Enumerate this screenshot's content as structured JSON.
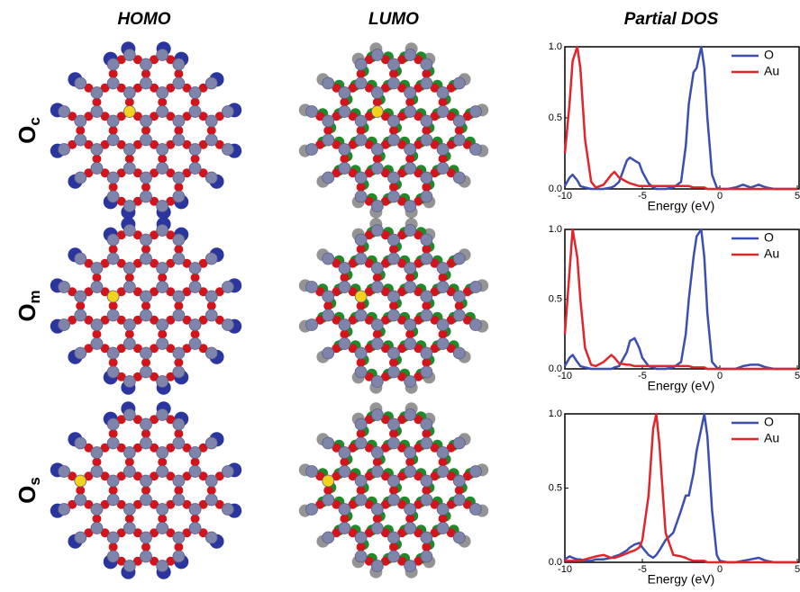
{
  "columns": [
    "HOMO",
    "LUMO",
    "Partial DOS"
  ],
  "rows": [
    {
      "label": "O",
      "subscript": "c"
    },
    {
      "label": "O",
      "subscript": "m"
    },
    {
      "label": "O",
      "subscript": "s"
    }
  ],
  "chart_data": [
    {
      "type": "line",
      "xlabel": "Energy (eV)",
      "xlim": [
        -10,
        5
      ],
      "xticks": [
        -10,
        -5,
        0,
        5
      ],
      "ylim": [
        0,
        1
      ],
      "yticks": [
        {
          "value": 0,
          "label": "0.0"
        },
        {
          "value": 0.5,
          "label": "0.5"
        },
        {
          "value": 1,
          "label": "1.0"
        }
      ],
      "legend": "top-right",
      "x": [
        -10,
        -9.7,
        -9.5,
        -9.2,
        -9,
        -8.7,
        -8.3,
        -8,
        -7.5,
        -7,
        -6.8,
        -6.5,
        -6,
        -5.8,
        -5.5,
        -5.2,
        -5,
        -4.6,
        -4.3,
        -4.1,
        -3.9,
        -3.5,
        -3,
        -2.5,
        -2.2,
        -2,
        -1.7,
        -1.5,
        -1.2,
        -1,
        -0.8,
        -0.5,
        -0.2,
        0,
        0.5,
        1,
        1.5,
        2,
        2.5,
        3,
        3.5,
        4,
        5
      ],
      "series": [
        {
          "name": "O",
          "color": "#3a4fb0",
          "values": [
            0.02,
            0.08,
            0.1,
            0.06,
            0.02,
            0.01,
            0,
            0,
            0,
            0.01,
            0.02,
            0.05,
            0.2,
            0.22,
            0.2,
            0.18,
            0.12,
            0.04,
            0.01,
            0,
            0,
            0,
            0.01,
            0.05,
            0.3,
            0.6,
            0.82,
            0.85,
            1.0,
            0.85,
            0.5,
            0.1,
            0.01,
            0,
            0,
            0.01,
            0.03,
            0.01,
            0.03,
            0.01,
            0,
            0,
            0
          ]
        },
        {
          "name": "Au",
          "color": "#e0262a",
          "values": [
            0.25,
            0.6,
            0.9,
            1.0,
            0.85,
            0.35,
            0.05,
            0.01,
            0.03,
            0.1,
            0.12,
            0.08,
            0.05,
            0.04,
            0.03,
            0.02,
            0.02,
            0.02,
            0.02,
            0.02,
            0.02,
            0.02,
            0.02,
            0.02,
            0.02,
            0.02,
            0.01,
            0.01,
            0.01,
            0.01,
            0,
            0,
            0,
            0,
            0,
            0,
            0,
            0,
            0,
            0,
            0,
            0,
            0
          ]
        }
      ]
    },
    {
      "type": "line",
      "xlabel": "Energy (eV)",
      "xlim": [
        -10,
        5
      ],
      "xticks": [
        -10,
        -5,
        0,
        5
      ],
      "ylim": [
        0,
        1
      ],
      "yticks": [
        {
          "value": 0,
          "label": "0.0"
        },
        {
          "value": 0.5,
          "label": "0.5"
        },
        {
          "value": 1,
          "label": "1.0"
        }
      ],
      "legend": "top-right",
      "x": [
        -10,
        -9.7,
        -9.5,
        -9.2,
        -9,
        -8.7,
        -8.3,
        -8,
        -7.5,
        -7,
        -6.8,
        -6.5,
        -6,
        -5.8,
        -5.5,
        -5.2,
        -5,
        -4.6,
        -4.3,
        -4.1,
        -3.9,
        -3.5,
        -3,
        -2.5,
        -2.2,
        -2,
        -1.7,
        -1.5,
        -1.2,
        -1,
        -0.8,
        -0.5,
        -0.2,
        0,
        0.5,
        1,
        1.5,
        2,
        2.5,
        3,
        3.5,
        4,
        5
      ],
      "series": [
        {
          "name": "O",
          "color": "#3a4fb0",
          "values": [
            0.02,
            0.08,
            0.1,
            0.05,
            0.02,
            0.01,
            0,
            0,
            0,
            0,
            0.01,
            0.02,
            0.12,
            0.2,
            0.22,
            0.15,
            0.08,
            0.02,
            0.01,
            0,
            0,
            0,
            0.01,
            0.05,
            0.25,
            0.5,
            0.8,
            0.95,
            1.0,
            0.8,
            0.4,
            0.05,
            0.01,
            0,
            0,
            0,
            0.02,
            0.03,
            0.03,
            0.01,
            0,
            0,
            0
          ]
        },
        {
          "name": "Au",
          "color": "#e0262a",
          "values": [
            0.25,
            0.7,
            1.0,
            0.8,
            0.5,
            0.15,
            0.03,
            0.02,
            0.05,
            0.1,
            0.08,
            0.04,
            0.03,
            0.03,
            0.02,
            0.02,
            0.02,
            0.02,
            0.02,
            0.02,
            0.02,
            0.02,
            0.02,
            0.02,
            0.02,
            0.02,
            0.01,
            0.01,
            0.01,
            0.01,
            0,
            0,
            0,
            0,
            0,
            0,
            0,
            0,
            0,
            0,
            0,
            0,
            0
          ]
        }
      ]
    },
    {
      "type": "line",
      "xlabel": "Energy (eV)",
      "xlim": [
        -10,
        5
      ],
      "xticks": [
        -10,
        -5,
        0,
        5
      ],
      "ylim": [
        0,
        1
      ],
      "yticks": [
        {
          "value": 0,
          "label": "0.0"
        },
        {
          "value": 0.5,
          "label": "0.5"
        },
        {
          "value": 1,
          "label": "1.0"
        }
      ],
      "legend": "top-right",
      "x": [
        -10,
        -9.7,
        -9.5,
        -9.2,
        -9,
        -8.7,
        -8.3,
        -8,
        -7.5,
        -7,
        -6.8,
        -6.5,
        -6,
        -5.8,
        -5.5,
        -5.2,
        -5,
        -4.6,
        -4.3,
        -4.1,
        -3.9,
        -3.5,
        -3,
        -2.5,
        -2.2,
        -2,
        -1.7,
        -1.5,
        -1.2,
        -1,
        -0.8,
        -0.5,
        -0.2,
        0,
        0.5,
        1,
        1.5,
        2,
        2.5,
        3,
        3.5,
        4,
        5
      ],
      "series": [
        {
          "name": "O",
          "color": "#3a4fb0",
          "values": [
            0.02,
            0.04,
            0.03,
            0.02,
            0.02,
            0.01,
            0.01,
            0.02,
            0.02,
            0.03,
            0.04,
            0.05,
            0.08,
            0.1,
            0.12,
            0.13,
            0.1,
            0.05,
            0.03,
            0.05,
            0.08,
            0.15,
            0.2,
            0.35,
            0.45,
            0.45,
            0.6,
            0.75,
            0.9,
            1.0,
            0.85,
            0.35,
            0.05,
            0.01,
            0,
            0,
            0.01,
            0.02,
            0.03,
            0.01,
            0,
            0,
            0
          ]
        },
        {
          "name": "Au",
          "color": "#e0262a",
          "values": [
            0.01,
            0.01,
            0.01,
            0.01,
            0.01,
            0.02,
            0.03,
            0.04,
            0.05,
            0.03,
            0.03,
            0.04,
            0.06,
            0.07,
            0.08,
            0.1,
            0.15,
            0.45,
            0.9,
            1.0,
            0.8,
            0.2,
            0.05,
            0.04,
            0.03,
            0.02,
            0.01,
            0.01,
            0.01,
            0.01,
            0,
            0,
            0,
            0,
            0,
            0,
            0,
            0,
            0,
            0,
            0,
            0,
            0
          ]
        }
      ]
    }
  ]
}
